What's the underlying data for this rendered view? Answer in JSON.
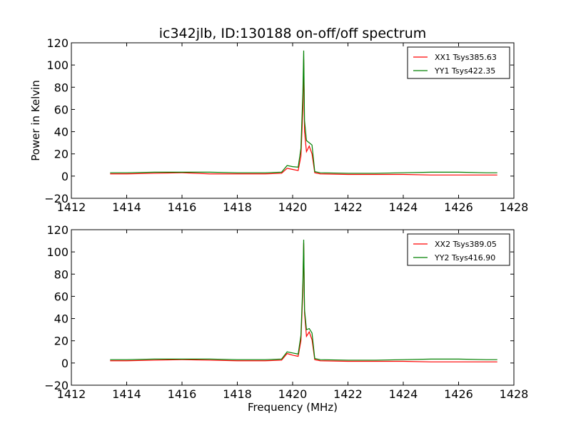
{
  "title": "ic342jlb, ID:130188 on-off/off spectrum",
  "xlabel": "Frequency (MHz)",
  "ylabel": "Power in Kelvin",
  "colors": {
    "red": "#ff0000",
    "green": "#008000"
  },
  "chart_data": [
    {
      "type": "line",
      "xlim": [
        1412,
        1428
      ],
      "ylim": [
        -20,
        120
      ],
      "xticks": [
        1412,
        1414,
        1416,
        1418,
        1420,
        1422,
        1424,
        1426,
        1428
      ],
      "yticks": [
        -20,
        0,
        20,
        40,
        60,
        80,
        100,
        120
      ],
      "legend_position": "top-right",
      "series": [
        {
          "name": "XX1 Tsys385.63",
          "color": "#ff0000",
          "x": [
            1413.4,
            1414,
            1415,
            1416,
            1417,
            1418,
            1419,
            1419.6,
            1419.8,
            1420.0,
            1420.2,
            1420.3,
            1420.37,
            1420.4,
            1420.43,
            1420.5,
            1420.6,
            1420.7,
            1420.8,
            1421,
            1422,
            1423,
            1424,
            1425,
            1426,
            1427,
            1427.4
          ],
          "values": [
            2,
            2,
            2.5,
            3,
            2,
            2,
            2,
            2.5,
            7,
            6,
            5,
            18,
            60,
            105,
            40,
            22,
            27,
            20,
            3,
            2,
            1.5,
            1.5,
            1.5,
            1,
            1,
            1,
            1
          ]
        },
        {
          "name": "YY1 Tsys422.35",
          "color": "#008000",
          "x": [
            1413.4,
            1414,
            1415,
            1416,
            1417,
            1418,
            1419,
            1419.6,
            1419.8,
            1420.0,
            1420.2,
            1420.3,
            1420.37,
            1420.4,
            1420.43,
            1420.5,
            1420.6,
            1420.7,
            1420.8,
            1421,
            1422,
            1423,
            1424,
            1425,
            1426,
            1427,
            1427.4
          ],
          "values": [
            3,
            3,
            3.5,
            3.5,
            3.5,
            3,
            3,
            3.5,
            9.5,
            8.5,
            8,
            25,
            75,
            113,
            50,
            32,
            30,
            28,
            4,
            3,
            2.5,
            2.5,
            3,
            3.5,
            3.5,
            3,
            3
          ]
        }
      ]
    },
    {
      "type": "line",
      "xlim": [
        1412,
        1428
      ],
      "ylim": [
        -20,
        120
      ],
      "xticks": [
        1412,
        1414,
        1416,
        1418,
        1420,
        1422,
        1424,
        1426,
        1428
      ],
      "yticks": [
        -20,
        0,
        20,
        40,
        60,
        80,
        100,
        120
      ],
      "legend_position": "top-right",
      "series": [
        {
          "name": "XX2 Tsys389.05",
          "color": "#ff0000",
          "x": [
            1413.4,
            1414,
            1415,
            1416,
            1417,
            1418,
            1419,
            1419.6,
            1419.8,
            1420.0,
            1420.2,
            1420.3,
            1420.37,
            1420.4,
            1420.43,
            1420.5,
            1420.6,
            1420.7,
            1420.8,
            1421,
            1422,
            1423,
            1424,
            1425,
            1426,
            1427,
            1427.4
          ],
          "values": [
            2,
            2,
            2.5,
            3,
            2.5,
            2,
            2,
            2.5,
            8.5,
            7,
            6,
            20,
            65,
            108,
            45,
            24,
            28,
            21,
            3,
            2,
            1.5,
            1.5,
            1.5,
            1,
            1,
            1,
            1
          ]
        },
        {
          "name": "YY2 Tsys416.90",
          "color": "#008000",
          "x": [
            1413.4,
            1414,
            1415,
            1416,
            1417,
            1418,
            1419,
            1419.6,
            1419.8,
            1420.0,
            1420.2,
            1420.3,
            1420.37,
            1420.4,
            1420.43,
            1420.5,
            1420.6,
            1420.7,
            1420.8,
            1421,
            1422,
            1423,
            1424,
            1425,
            1426,
            1427,
            1427.4
          ],
          "values": [
            3,
            3,
            3.5,
            3.5,
            3.5,
            3,
            3,
            3.5,
            10,
            9,
            8,
            25,
            72,
            111,
            48,
            30,
            31,
            27,
            4,
            3,
            2.5,
            2.5,
            3,
            3.5,
            3.5,
            3,
            3
          ]
        }
      ]
    }
  ]
}
